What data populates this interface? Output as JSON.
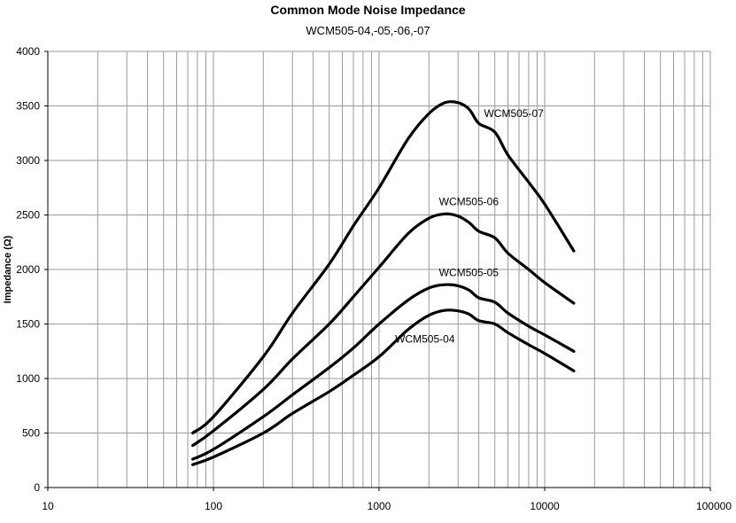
{
  "chart_data": {
    "type": "line",
    "title": "Common Mode Noise Impedance",
    "subtitle": "WCM505-04,-05,-06,-07",
    "xlabel": "",
    "ylabel": "Impedance (Ω)",
    "x_scale": "log",
    "xlim": [
      10,
      100000
    ],
    "ylim": [
      0,
      4000
    ],
    "x_ticks": [
      10,
      100,
      1000,
      10000,
      100000
    ],
    "x_tick_labels": [
      "10",
      "100",
      "1000",
      "10000",
      "100000"
    ],
    "y_ticks": [
      0,
      500,
      1000,
      1500,
      2000,
      2500,
      3000,
      3500,
      4000
    ],
    "y_tick_labels": [
      "0",
      "500",
      "1000",
      "1500",
      "2000",
      "2500",
      "3000",
      "3500",
      "4000"
    ],
    "grid": true,
    "legend": "inline labels",
    "series": [
      {
        "name": "WCM505-07",
        "x": [
          75,
          100,
          200,
          300,
          500,
          700,
          1000,
          1500,
          2000,
          2500,
          3000,
          3500,
          4000,
          5000,
          6000,
          8000,
          10000,
          15000
        ],
        "y": [
          500,
          650,
          1200,
          1600,
          2050,
          2400,
          2750,
          3200,
          3430,
          3530,
          3530,
          3470,
          3340,
          3260,
          3050,
          2800,
          2600,
          2170
        ]
      },
      {
        "name": "WCM505-06",
        "x": [
          75,
          100,
          200,
          300,
          500,
          700,
          1000,
          1500,
          2000,
          2500,
          3000,
          3500,
          4000,
          5000,
          6000,
          8000,
          10000,
          15000
        ],
        "y": [
          385,
          520,
          900,
          1180,
          1500,
          1750,
          2020,
          2330,
          2470,
          2510,
          2490,
          2430,
          2350,
          2290,
          2150,
          2000,
          1880,
          1690
        ]
      },
      {
        "name": "WCM505-05",
        "x": [
          75,
          100,
          200,
          300,
          500,
          700,
          1000,
          1500,
          2000,
          2500,
          3000,
          3500,
          4000,
          5000,
          6000,
          8000,
          10000,
          15000
        ],
        "y": [
          260,
          350,
          650,
          850,
          1100,
          1280,
          1500,
          1720,
          1830,
          1860,
          1850,
          1810,
          1740,
          1700,
          1600,
          1480,
          1400,
          1250
        ]
      },
      {
        "name": "WCM505-04",
        "x": [
          75,
          100,
          200,
          300,
          500,
          700,
          1000,
          1500,
          2000,
          2500,
          3000,
          3500,
          4000,
          5000,
          6000,
          8000,
          10000,
          15000
        ],
        "y": [
          210,
          280,
          500,
          680,
          880,
          1030,
          1200,
          1450,
          1580,
          1625,
          1620,
          1590,
          1530,
          1500,
          1420,
          1310,
          1230,
          1070
        ]
      }
    ],
    "annotations": [
      {
        "text": "WCM505-07",
        "x": 4300,
        "y": 3400
      },
      {
        "text": "WCM505-06",
        "x": 2300,
        "y": 2590
      },
      {
        "text": "WCM505-05",
        "x": 2300,
        "y": 1940
      },
      {
        "text": "WCM505-04",
        "x": 1250,
        "y": 1330
      }
    ]
  }
}
